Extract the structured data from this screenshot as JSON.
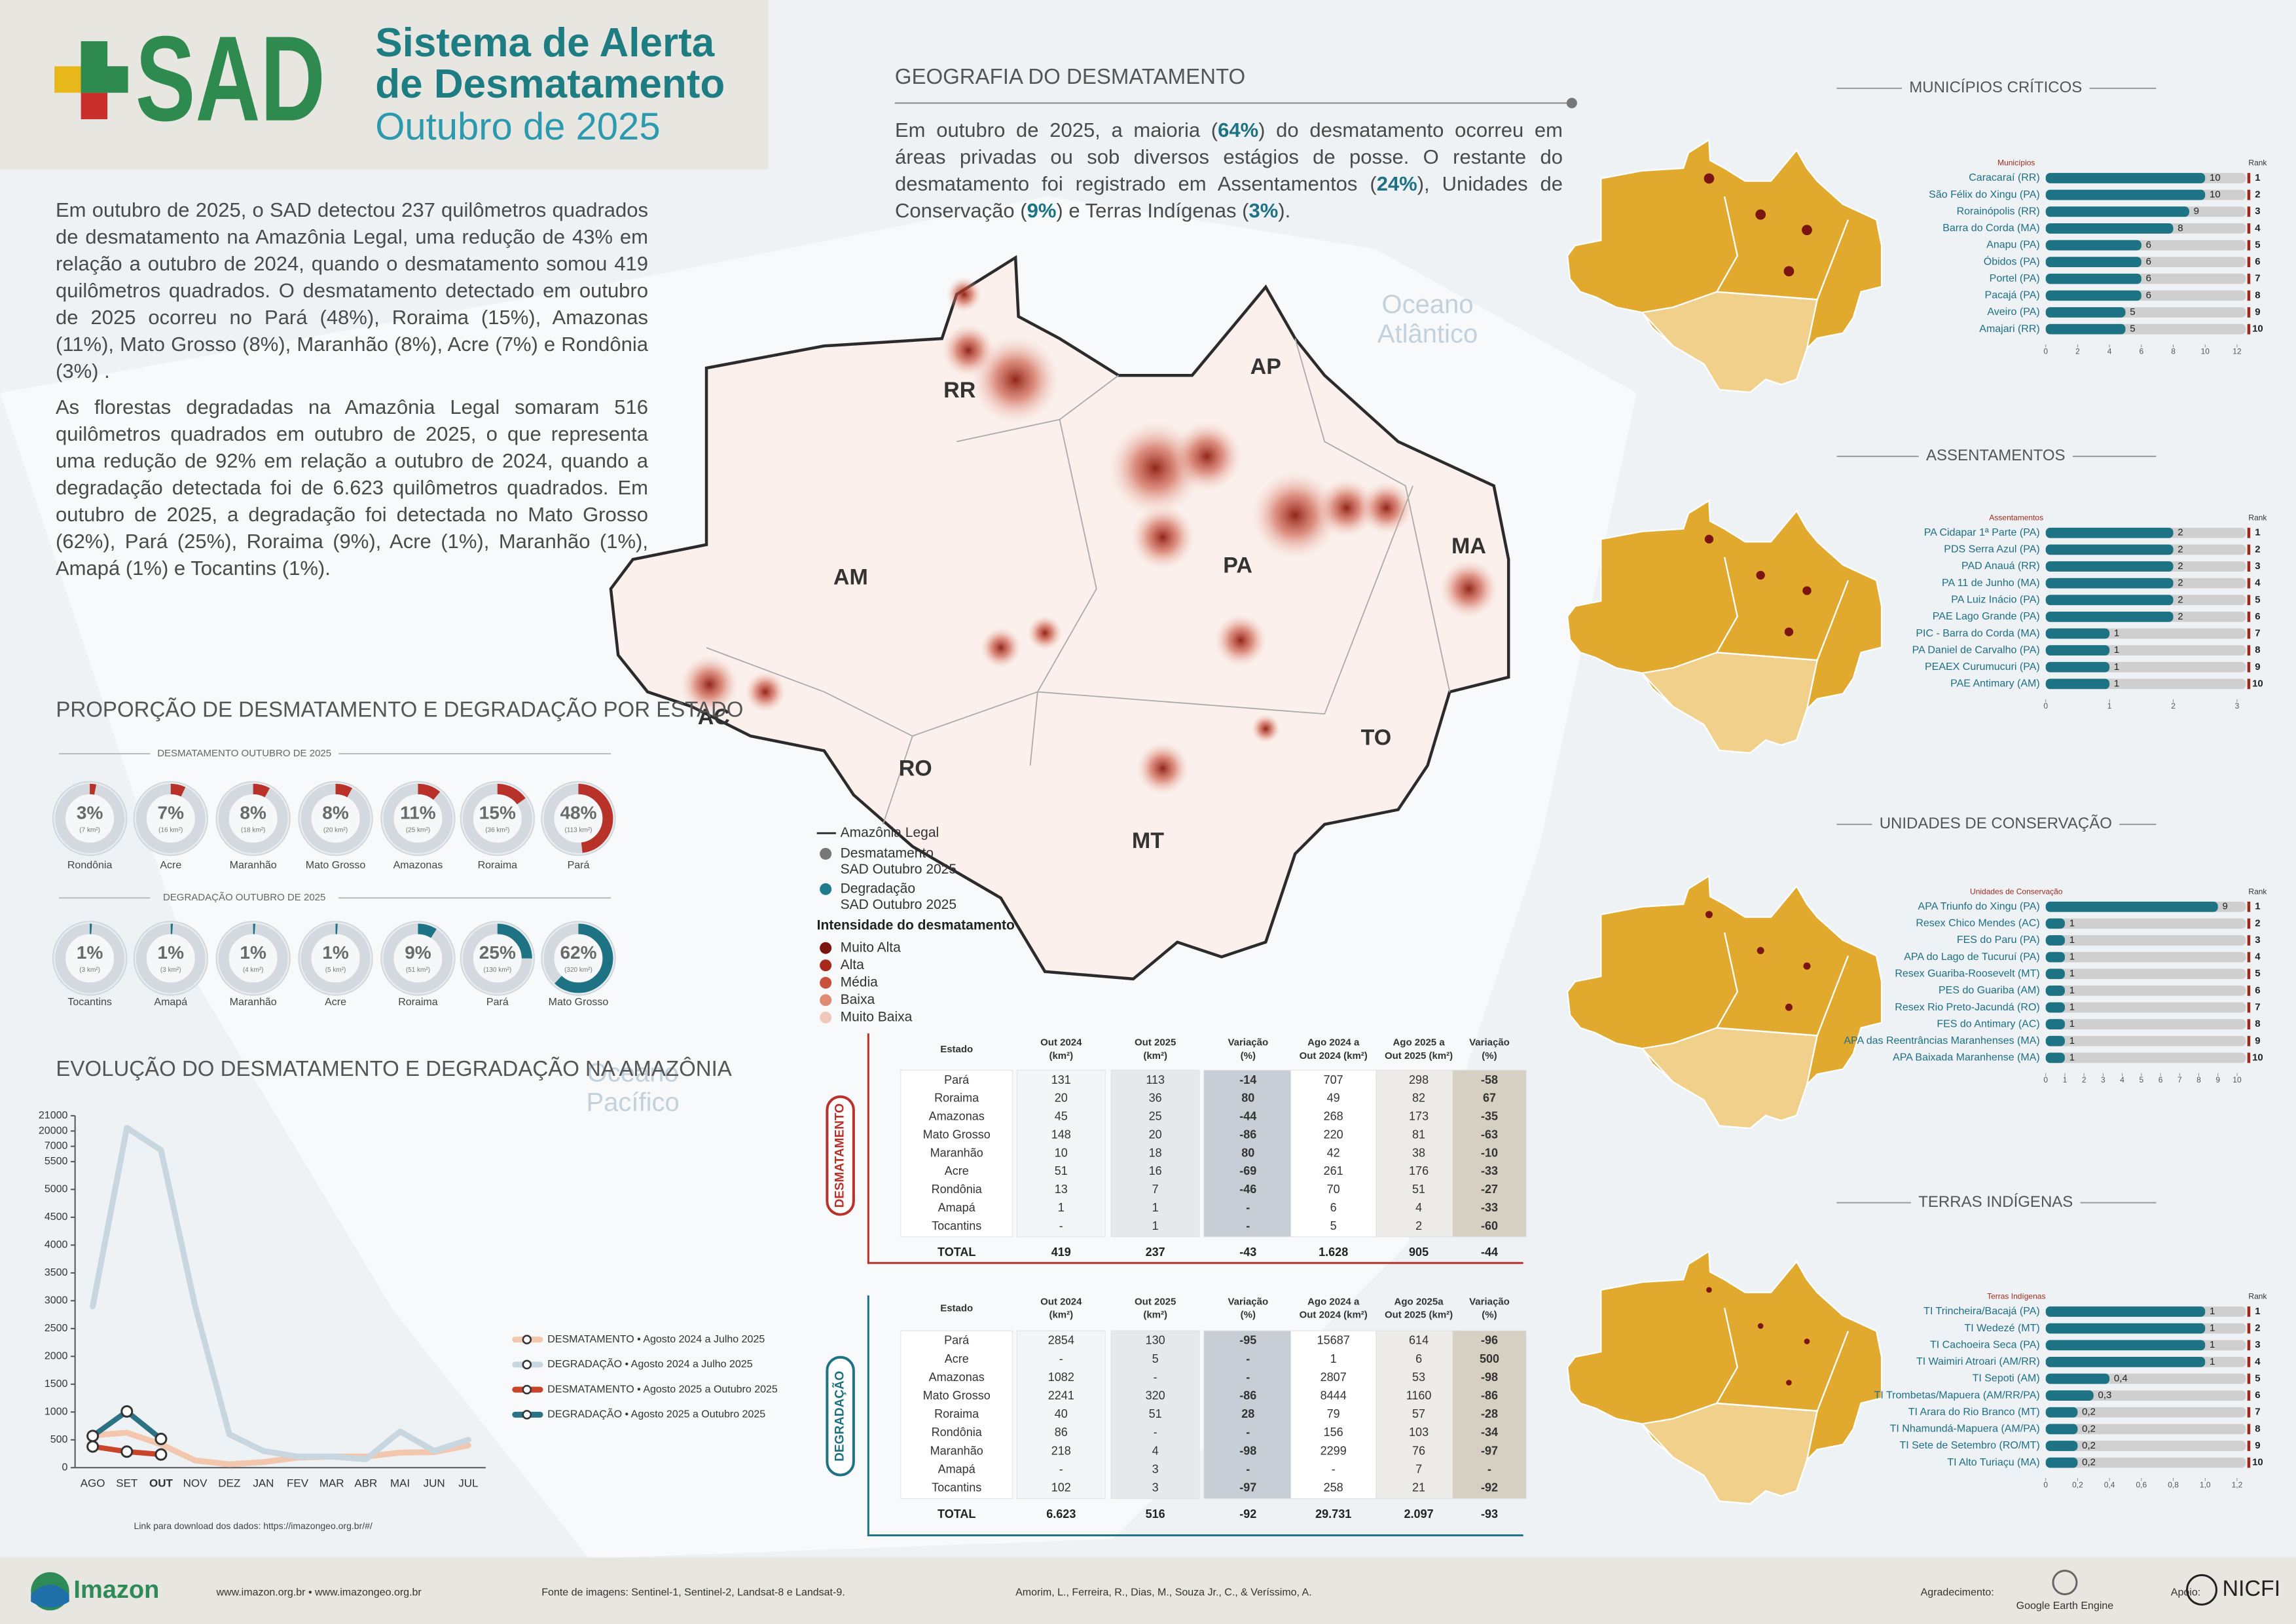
{
  "header": {
    "logo": "SAD",
    "title_lines": [
      "Sistema de Alerta",
      "de Desmatamento"
    ],
    "subtitle": "Outubro de 2025"
  },
  "intro": [
    "Em outubro de 2025, o SAD detectou 237 quilômetros quadrados de desmatamento na Amazônia Legal, uma redução de 43% em relação a outubro de 2024, quando o desmatamento somou 419 quilômetros quadrados. O desmatamento detectado em outubro de 2025 ocorreu no Pará (48%), Roraima (15%), Amazonas (11%), Mato Grosso (8%), Maranhão (8%), Acre (7%) e Rondônia (3%) .",
    "As florestas degradadas na Amazônia Legal somaram 516 quilômetros quadrados em outubro de 2025, o que representa uma redução de 92% em relação a outubro de 2024, quando a degradação detectada foi de 6.623 quilômetros quadrados. Em outubro de 2025, a degradação foi detectada no Mato Grosso (62%), Pará (25%), Roraima (9%), Acre (1%), Maranhão (1%), Amapá (1%) e Tocantins (1%)."
  ],
  "geography": {
    "title": "GEOGRAFIA DO DESMATAMENTO",
    "runs": [
      "Em outubro de 2025, a maioria (",
      "64%",
      ") do desmatamento ocorreu em áreas privadas ou sob diversos estágios de posse. O restante do desmatamento foi registrado em Assentamentos (",
      "24%",
      "), Unidades de Conservação (",
      "9%",
      ") e Terras Indígenas (",
      "3%",
      ")."
    ]
  },
  "map": {
    "states": [
      "RR",
      "AP",
      "AM",
      "PA",
      "MA",
      "AC",
      "RO",
      "TO",
      "MT"
    ],
    "oceans": [
      [
        "Oceano",
        "Atlântico"
      ],
      [
        "Oceano",
        "Pacífico"
      ]
    ],
    "legend": {
      "boundary": "Amazônia Legal",
      "deforestation": [
        "Desmatamento",
        "SAD Outubro 2025"
      ],
      "degradation": [
        "Degradação",
        "SAD Outubro 2025"
      ],
      "intensity_title": "Intensidade do desmatamento",
      "intensity": [
        {
          "name": "Muito Alta",
          "color": "#7b1510"
        },
        {
          "name": "Alta",
          "color": "#a8281c"
        },
        {
          "name": "Média",
          "color": "#c9503b"
        },
        {
          "name": "Baixa",
          "color": "#e08a70"
        },
        {
          "name": "Muito Baixa",
          "color": "#f0c9bc"
        }
      ]
    }
  },
  "proportion": {
    "title": "PROPORÇÃO DE DESMATAMENTO E DEGRADAÇÃO POR ESTADO",
    "charts": [
      {
        "type": "donut",
        "subtitle": "DESMATAMENTO OUTUBRO DE 2025",
        "color": "#b8322a",
        "categories": [
          "Rondônia",
          "Acre",
          "Maranhão",
          "Mato Grosso",
          "Amazonas",
          "Roraima",
          "Pará"
        ],
        "values": [
          3,
          7,
          8,
          8,
          11,
          15,
          48
        ],
        "value_labels": [
          "3%",
          "7%",
          "8%",
          "8%",
          "11%",
          "15%",
          "48%"
        ],
        "areas": [
          7,
          16,
          18,
          20,
          25,
          36,
          113
        ],
        "area_labels": [
          "(7 km²)",
          "(16 km²)",
          "(18 km²)",
          "(20 km²)",
          "(25 km²)",
          "(36 km²)",
          "(113 km²)"
        ]
      },
      {
        "type": "donut",
        "subtitle": "DEGRADAÇÃO OUTUBRO DE 2025",
        "color": "#1d7283",
        "categories": [
          "Tocantins",
          "Amapá",
          "Maranhão",
          "Acre",
          "Roraima",
          "Pará",
          "Mato Grosso"
        ],
        "values": [
          1,
          1,
          1,
          1,
          9,
          25,
          62
        ],
        "value_labels": [
          "1%",
          "1%",
          "1%",
          "1%",
          "9%",
          "25%",
          "62%"
        ],
        "areas": [
          3,
          3,
          4,
          5,
          51,
          130,
          320
        ],
        "area_labels": [
          "(3 km²)",
          "(3 km²)",
          "(4 km²)",
          "(5 km²)",
          "(51 km²)",
          "(130 km²)",
          "(320 km²)"
        ]
      }
    ]
  },
  "evolution": {
    "type": "line",
    "title": "EVOLUÇÃO DO DESMATAMENTO E DEGRADAÇÃO NA AMAZÔNIA",
    "x": [
      "AGO",
      "SET",
      "OUT",
      "NOV",
      "DEZ",
      "JAN",
      "FEV",
      "MAR",
      "ABR",
      "MAI",
      "JUN",
      "JUL"
    ],
    "ylim": [
      0,
      21000
    ],
    "yticks": [
      0,
      500,
      1000,
      1500,
      2000,
      2500,
      3000,
      3500,
      4000,
      4500,
      5000,
      5500,
      7000,
      20000,
      21000
    ],
    "series": [
      {
        "name": "DESMATAMENTO • Agosto 2024 a Julho 2025",
        "color": "#f2c7ad",
        "values": [
          580,
          629,
          419,
          130,
          60,
          100,
          180,
          200,
          200,
          270,
          280,
          400
        ]
      },
      {
        "name": "DEGRADAÇÃO • Agosto 2024 a Julho 2025",
        "color": "#c8d6e0",
        "values": [
          2900,
          20208,
          6623,
          2900,
          600,
          300,
          200,
          200,
          150,
          650,
          300,
          500
        ]
      },
      {
        "name": "DESMATAMENTO • Agosto 2025 a Outubro 2025",
        "color": "#c8452c",
        "values": [
          380,
          288,
          237,
          null,
          null,
          null,
          null,
          null,
          null,
          null,
          null,
          null
        ]
      },
      {
        "name": "DEGRADAÇÃO • Agosto 2025 a Outubro 2025",
        "color": "#2b7384",
        "values": [
          570,
          1011,
          516,
          null,
          null,
          null,
          null,
          null,
          null,
          null,
          null,
          null
        ]
      }
    ],
    "link": "Link para download dos dados: https://imazongeo.org.br/#/"
  },
  "tables": [
    {
      "label": "DESMATAMENTO",
      "color": "#b8322a",
      "header": [
        [
          "Estado"
        ],
        [
          "Out 2024",
          "(km²)"
        ],
        [
          "Out 2025",
          "(km²)"
        ],
        [
          "Variação",
          "(%)"
        ],
        [
          "Ago 2024 a",
          "Out 2024 (km²)"
        ],
        [
          "Ago 2025 a",
          "Out 2025 (km²)"
        ],
        [
          "Variação",
          "(%)"
        ]
      ],
      "rows": [
        [
          "Pará",
          "131",
          "113",
          "-14",
          "707",
          "298",
          "-58"
        ],
        [
          "Roraima",
          "20",
          "36",
          "80",
          "49",
          "82",
          "67"
        ],
        [
          "Amazonas",
          "45",
          "25",
          "-44",
          "268",
          "173",
          "-35"
        ],
        [
          "Mato Grosso",
          "148",
          "20",
          "-86",
          "220",
          "81",
          "-63"
        ],
        [
          "Maranhão",
          "10",
          "18",
          "80",
          "42",
          "38",
          "-10"
        ],
        [
          "Acre",
          "51",
          "16",
          "-69",
          "261",
          "176",
          "-33"
        ],
        [
          "Rondônia",
          "13",
          "7",
          "-46",
          "70",
          "51",
          "-27"
        ],
        [
          "Amapá",
          "1",
          "1",
          "-",
          "6",
          "4",
          "-33"
        ],
        [
          "Tocantins",
          "-",
          "1",
          "-",
          "5",
          "2",
          "-60"
        ]
      ],
      "total": [
        "TOTAL",
        "419",
        "237",
        "-43",
        "1.628",
        "905",
        "-44"
      ]
    },
    {
      "label": "DEGRADAÇÃO",
      "color": "#1d7283",
      "header": [
        [
          "Estado"
        ],
        [
          "Out 2024",
          "(km²)"
        ],
        [
          "Out 2025",
          "(km²)"
        ],
        [
          "Variação",
          "(%)"
        ],
        [
          "Ago 2024 a",
          "Out 2024 (km²)"
        ],
        [
          "Ago 2025a",
          "Out 2025 (km²)"
        ],
        [
          "Variação",
          "(%)"
        ]
      ],
      "rows": [
        [
          "Pará",
          "2854",
          "130",
          "-95",
          "15687",
          "614",
          "-96"
        ],
        [
          "Acre",
          "-",
          "5",
          "-",
          "1",
          "6",
          "500"
        ],
        [
          "Amazonas",
          "1082",
          "-",
          "-",
          "2807",
          "53",
          "-98"
        ],
        [
          "Mato Grosso",
          "2241",
          "320",
          "-86",
          "8444",
          "1160",
          "-86"
        ],
        [
          "Roraima",
          "40",
          "51",
          "28",
          "79",
          "57",
          "-28"
        ],
        [
          "Rondônia",
          "86",
          "-",
          "-",
          "156",
          "103",
          "-34"
        ],
        [
          "Maranhão",
          "218",
          "4",
          "-98",
          "2299",
          "76",
          "-97"
        ],
        [
          "Amapá",
          "-",
          "3",
          "-",
          "-",
          "7",
          "-"
        ],
        [
          "Tocantins",
          "102",
          "3",
          "-97",
          "258",
          "21",
          "-92"
        ]
      ],
      "total": [
        "TOTAL",
        "6.623",
        "516",
        "-92",
        "29.731",
        "2.097",
        "-93"
      ]
    }
  ],
  "rankings": [
    {
      "type": "bar",
      "title": "MUNICÍPIOS CRÍTICOS",
      "column": "Municípios",
      "rank_label": "Rank",
      "color": "#1d7283",
      "categories": [
        "Caracaraí (RR)",
        "São Félix do Xingu (PA)",
        "Rorainópolis (RR)",
        "Barra do Corda (MA)",
        "Anapu (PA)",
        "Óbidos (PA)",
        "Portel (PA)",
        "Pacajá (PA)",
        "Aveiro (PA)",
        "Amajari (RR)"
      ],
      "values": [
        10,
        10,
        9,
        8,
        6,
        6,
        6,
        6,
        5,
        5
      ],
      "ranks": [
        1,
        2,
        3,
        4,
        5,
        6,
        7,
        8,
        9,
        10
      ],
      "xlim": [
        0,
        12
      ],
      "xticks": [
        0,
        2,
        4,
        6,
        8,
        10,
        12
      ]
    },
    {
      "type": "bar",
      "title": "ASSENTAMENTOS",
      "column": "Assentamentos",
      "rank_label": "Rank",
      "color": "#1d7283",
      "categories": [
        "PA Cidapar 1ª Parte (PA)",
        "PDS Serra Azul (PA)",
        "PAD Anauá (RR)",
        "PA 11 de Junho (MA)",
        "PA Luiz Inácio (PA)",
        "PAE Lago Grande (PA)",
        "PIC - Barra do Corda (MA)",
        "PA Daniel de Carvalho (PA)",
        "PEAEX Curumucuri (PA)",
        "PAE Antimary (AM)"
      ],
      "values": [
        2,
        2,
        2,
        2,
        2,
        2,
        1,
        1,
        1,
        1
      ],
      "ranks": [
        1,
        2,
        3,
        4,
        5,
        6,
        7,
        8,
        9,
        10
      ],
      "xlim": [
        0,
        3
      ],
      "xticks": [
        0,
        1,
        2,
        3
      ]
    },
    {
      "type": "bar",
      "title": "UNIDADES DE CONSERVAÇÃO",
      "column": "Unidades de Conservação",
      "rank_label": "Rank",
      "color": "#1d7283",
      "categories": [
        "APA Triunfo do Xingu (PA)",
        "Resex Chico Mendes (AC)",
        "FES do Paru (PA)",
        "APA do Lago de Tucuruí (PA)",
        "Resex  Guariba-Roosevelt (MT)",
        "PES do Guariba (AM)",
        "Resex  Rio Preto-Jacundá (RO)",
        "FES do Antimary (AC)",
        "APA das Reentrâncias Maranhenses (MA)",
        "APA Baixada Maranhense (MA)"
      ],
      "values": [
        9,
        1,
        1,
        1,
        1,
        1,
        1,
        1,
        1,
        1
      ],
      "ranks": [
        1,
        2,
        3,
        4,
        5,
        6,
        7,
        8,
        9,
        10
      ],
      "xlim": [
        0,
        10
      ],
      "xticks": [
        0,
        1,
        2,
        3,
        4,
        5,
        6,
        7,
        8,
        9,
        10
      ]
    },
    {
      "type": "bar",
      "title": "TERRAS INDÍGENAS",
      "column": "Terras Indígenas",
      "rank_label": "Rank",
      "color": "#1d7283",
      "categories": [
        "TI Trincheira/Bacajá (PA)",
        "TI Wedezé (MT)",
        "TI Cachoeira Seca (PA)",
        "TI Waimiri Atroari (AM/RR)",
        "TI Sepoti (AM)",
        "TI Trombetas/Mapuera (AM/RR/PA)",
        "TI Arara do Rio Branco (MT)",
        "TI Nhamundá-Mapuera (AM/PA)",
        "TI Sete de Setembro (RO/MT)",
        "TI Alto Turiaçu (MA)"
      ],
      "values": [
        1,
        1,
        1,
        1,
        0.4,
        0.3,
        0.2,
        0.2,
        0.2,
        0.2
      ],
      "value_labels": [
        "1",
        "1",
        "1",
        "1",
        "0,4",
        "0,3",
        "0,2",
        "0,2",
        "0,2",
        "0,2"
      ],
      "ranks": [
        1,
        2,
        3,
        4,
        5,
        6,
        7,
        8,
        9,
        10
      ],
      "xlim": [
        0,
        1.2
      ],
      "xticks": [
        0,
        {
          "value": 0.2,
          "label": "0,2"
        },
        {
          "value": 0.4,
          "label": "0,4"
        },
        {
          "value": 0.6,
          "label": "0,6"
        },
        {
          "value": 0.8,
          "label": "0,8"
        },
        {
          "value": 1,
          "label": "1,0"
        },
        {
          "value": 1.2,
          "label": "1,2"
        }
      ]
    }
  ],
  "footer": {
    "logo": "Imazon",
    "websites": "www.imazon.org.br • www.imazongeo.org.br",
    "sources": "Fonte de imagens: Sentinel-1, Sentinel-2, Landsat-8 e Landsat-9.",
    "authors": "Amorim, L., Ferreira, R., Dias, M., Souza Jr., C., & Veríssimo, A.",
    "thanks": "Agradecimento:",
    "thanks_partner": "Google Earth Engine",
    "support": "Apoio:",
    "support_partner": "NICFI"
  }
}
